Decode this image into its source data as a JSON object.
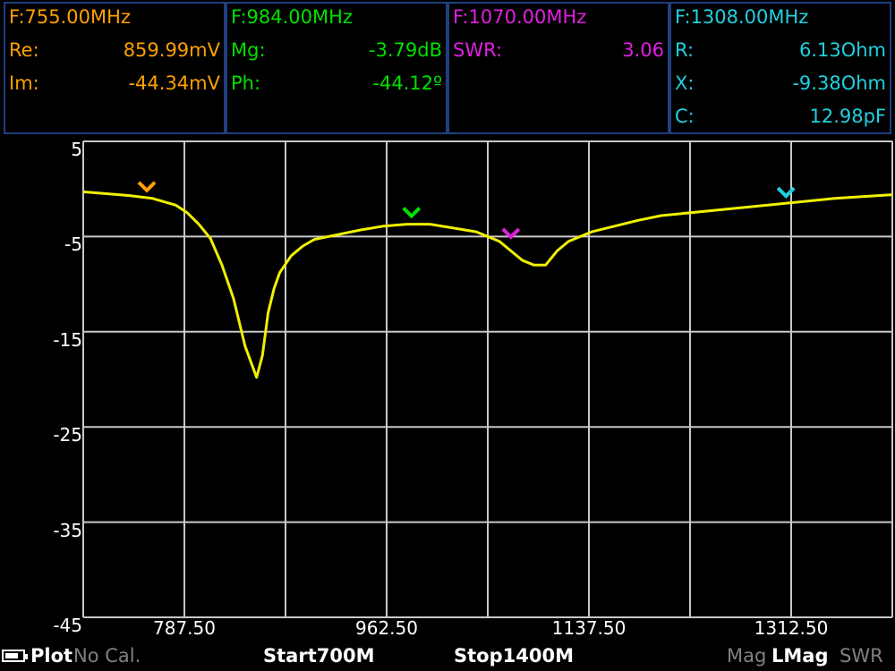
{
  "markers": [
    {
      "freq": "F:755.00MHz",
      "color": "#ffa000",
      "rows": [
        {
          "label": "Re:",
          "value": "859.99mV"
        },
        {
          "label": "Im:",
          "value": "-44.34mV"
        }
      ]
    },
    {
      "freq": "F:984.00MHz",
      "color": "#00e000",
      "rows": [
        {
          "label": "Mg:",
          "value": "-3.79dB"
        },
        {
          "label": "Ph:",
          "value": "-44.12º"
        }
      ]
    },
    {
      "freq": "F:1070.00MHz",
      "color": "#e020e0",
      "rows": [
        {
          "label": "SWR:",
          "value": "3.06"
        }
      ]
    },
    {
      "freq": "F:1308.00MHz",
      "color": "#20d0e0",
      "rows": [
        {
          "label": "R:",
          "value": "6.13Ohm"
        },
        {
          "label": "X:",
          "value": "-9.38Ohm"
        },
        {
          "label": "C:",
          "value": "12.98pF"
        }
      ]
    }
  ],
  "status": {
    "plot": "Plot",
    "cal": "No Cal.",
    "start": "Start700M",
    "stop": "Stop1400M",
    "mode_mag": "Mag",
    "mode_lmag": "LMag",
    "mode_swr": "SWR"
  },
  "colors": {
    "trace": "#f0f000",
    "grid": "#c8c8c8",
    "panel_border": "#1f3f7f",
    "inactive": "#808080"
  },
  "chart_data": {
    "type": "line",
    "xlim": [
      700,
      1400
    ],
    "ylim": [
      -45,
      5
    ],
    "xticks": [
      787.5,
      962.5,
      1137.5,
      1312.5
    ],
    "xtick_labels": [
      "787.50",
      "962.50",
      "1137.50",
      "1312.50"
    ],
    "yticks": [
      5,
      -5,
      -15,
      -25,
      -35,
      -45
    ],
    "ytick_labels": [
      "5",
      "-5",
      "-15",
      "-25",
      "-35",
      "-45"
    ],
    "grid": true,
    "series": [
      {
        "x": [
          700,
          720,
          740,
          760,
          780,
          790,
          800,
          810,
          820,
          830,
          840,
          850,
          855,
          860,
          865,
          870,
          880,
          890,
          900,
          920,
          940,
          960,
          980,
          1000,
          1020,
          1040,
          1060,
          1070,
          1080,
          1090,
          1100,
          1110,
          1120,
          1140,
          1160,
          1180,
          1200,
          1250,
          1300,
          1350,
          1400
        ],
        "y": [
          -0.3,
          -0.5,
          -0.7,
          -1.0,
          -1.7,
          -2.5,
          -3.7,
          -5.2,
          -8.0,
          -11.5,
          -16.5,
          -19.8,
          -17.5,
          -13.0,
          -10.5,
          -8.8,
          -7.0,
          -6.0,
          -5.3,
          -4.8,
          -4.3,
          -3.9,
          -3.7,
          -3.7,
          -4.1,
          -4.5,
          -5.5,
          -6.5,
          -7.5,
          -8.0,
          -8.0,
          -6.5,
          -5.5,
          -4.5,
          -3.9,
          -3.3,
          -2.8,
          -2.2,
          -1.6,
          -1.0,
          -0.6
        ]
      }
    ],
    "marker_points": [
      {
        "x": 755,
        "y": -0.9,
        "color": "#ffa000"
      },
      {
        "x": 984,
        "y": -3.6,
        "color": "#00e000"
      },
      {
        "x": 1070,
        "y": -5.8,
        "color": "#e020e0"
      },
      {
        "x": 1308,
        "y": -1.5,
        "color": "#20d0e0"
      }
    ]
  }
}
